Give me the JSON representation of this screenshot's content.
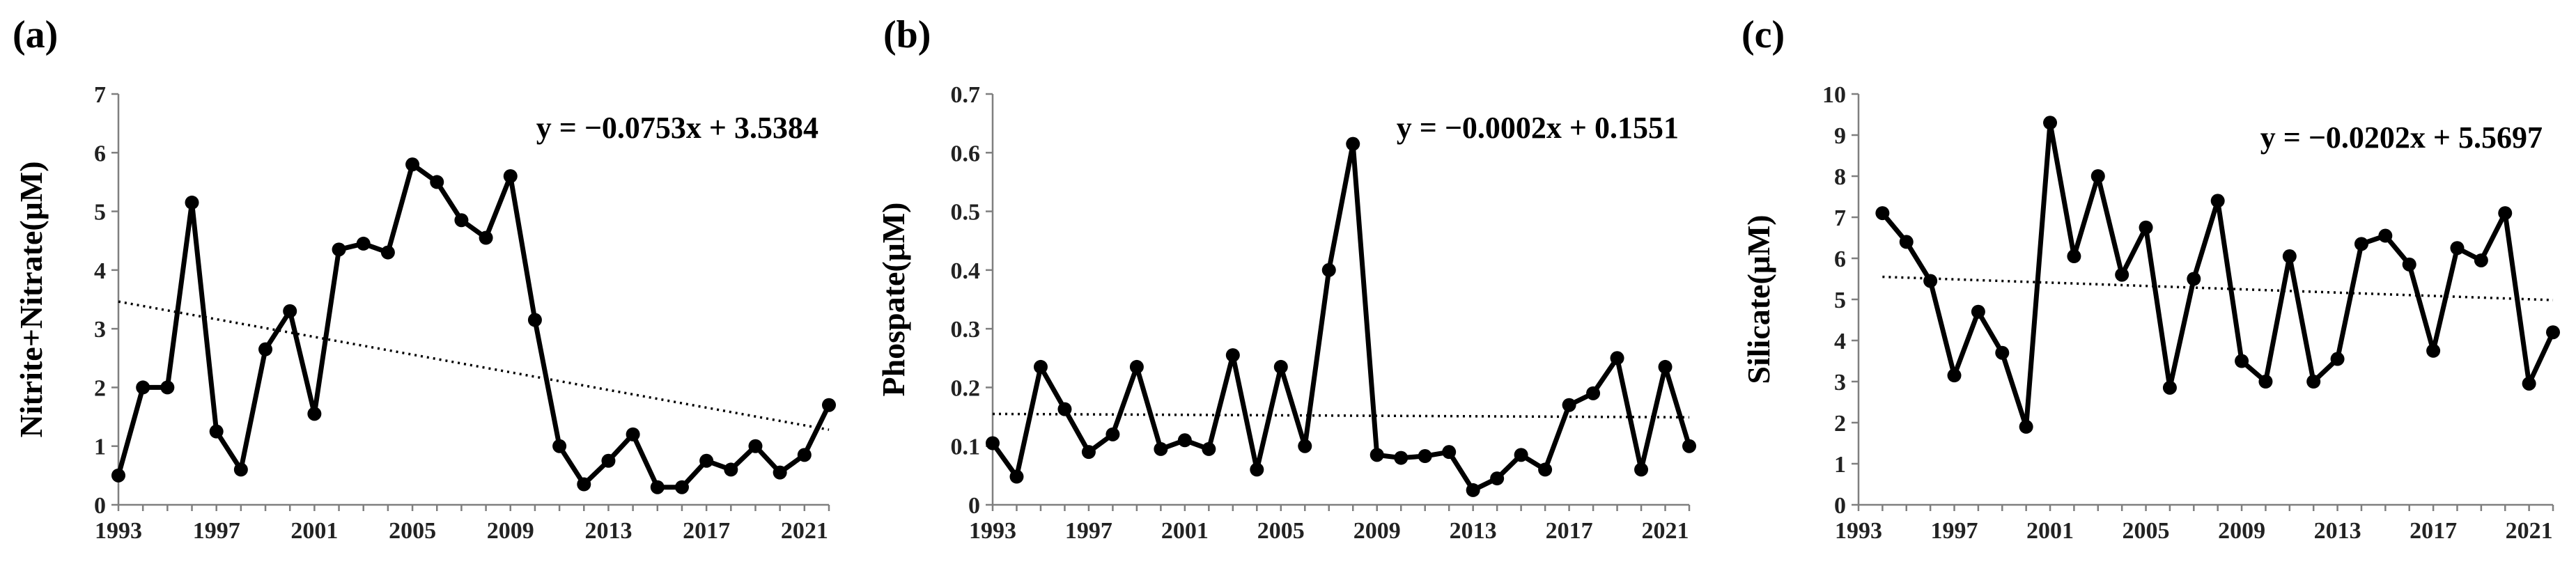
{
  "chart_data": [
    {
      "type": "line",
      "panel_label": "(a)",
      "title": "",
      "xlabel": "",
      "ylabel": "Nitrite+Nitrate(μM)",
      "xlim": [
        1993,
        2022
      ],
      "ylim": [
        0,
        7
      ],
      "yticks": [
        0,
        1,
        2,
        3,
        4,
        5,
        6,
        7
      ],
      "ytick_labels": [
        "0",
        "1",
        "2",
        "3",
        "4",
        "5",
        "6",
        "7"
      ],
      "xticks": [
        1993,
        1997,
        2001,
        2005,
        2009,
        2013,
        2017,
        2021
      ],
      "xtick_labels": [
        "1993",
        "1997",
        "2001",
        "2005",
        "2009",
        "2013",
        "2017",
        "2021"
      ],
      "grid": false,
      "equation": "y = −0.0753x + 3.5384",
      "trendline": {
        "slope": -0.0753,
        "intercept": 3.5384
      },
      "series": [
        {
          "x": [
            1993,
            1994,
            1995,
            1996,
            1997,
            1998,
            1999,
            2000,
            2001,
            2002,
            2003,
            2004,
            2005,
            2006,
            2007,
            2008,
            2009,
            2010,
            2011,
            2012,
            2013,
            2014,
            2015,
            2016,
            2017,
            2018,
            2019,
            2020,
            2021,
            2022
          ],
          "values": [
            0.5,
            2.0,
            2.0,
            5.15,
            1.25,
            0.6,
            2.65,
            3.3,
            1.55,
            4.35,
            4.45,
            4.3,
            5.8,
            5.5,
            4.85,
            4.55,
            5.6,
            3.15,
            1.0,
            0.35,
            0.75,
            1.2,
            0.3,
            0.3,
            0.75,
            0.6,
            1.0,
            0.55,
            0.85,
            1.7
          ]
        }
      ]
    },
    {
      "type": "line",
      "panel_label": "(b)",
      "title": "",
      "xlabel": "",
      "ylabel": "Phospate(μM)",
      "xlim": [
        1993,
        2022
      ],
      "ylim": [
        0,
        0.7
      ],
      "yticks": [
        0,
        0.1,
        0.2,
        0.3,
        0.4,
        0.5,
        0.6,
        0.7
      ],
      "ytick_labels": [
        "0",
        "0.1",
        "0.2",
        "0.3",
        "0.4",
        "0.5",
        "0.6",
        "0.7"
      ],
      "xticks": [
        1993,
        1997,
        2001,
        2005,
        2009,
        2013,
        2017,
        2021
      ],
      "xtick_labels": [
        "1993",
        "1997",
        "2001",
        "2005",
        "2009",
        "2013",
        "2017",
        "2021"
      ],
      "grid": false,
      "equation": "y = −0.0002x + 0.1551",
      "trendline": {
        "slope": -0.0002,
        "intercept": 0.1551
      },
      "series": [
        {
          "x": [
            1993,
            1994,
            1995,
            1996,
            1997,
            1998,
            1999,
            2000,
            2001,
            2002,
            2003,
            2004,
            2005,
            2006,
            2007,
            2008,
            2009,
            2010,
            2011,
            2012,
            2013,
            2014,
            2015,
            2016,
            2017,
            2018,
            2019,
            2020,
            2021,
            2022
          ],
          "values": [
            0.105,
            0.048,
            0.235,
            0.163,
            0.09,
            0.12,
            0.235,
            0.095,
            0.11,
            0.095,
            0.255,
            0.06,
            0.235,
            0.1,
            0.4,
            0.615,
            0.085,
            0.08,
            0.083,
            0.09,
            0.025,
            0.045,
            0.085,
            0.06,
            0.17,
            0.19,
            0.25,
            0.06,
            0.235,
            0.1
          ]
        }
      ]
    },
    {
      "type": "line",
      "panel_label": "(c)",
      "title": "",
      "xlabel": "",
      "ylabel": "Silicate(μM)",
      "xlim": [
        1993,
        2022
      ],
      "ylim": [
        0,
        10
      ],
      "yticks": [
        0,
        1,
        2,
        3,
        4,
        5,
        6,
        7,
        8,
        9,
        10
      ],
      "ytick_labels": [
        "0",
        "1",
        "2",
        "3",
        "4",
        "5",
        "6",
        "7",
        "8",
        "9",
        "10"
      ],
      "xticks": [
        1993,
        1997,
        2001,
        2005,
        2009,
        2013,
        2017,
        2021
      ],
      "xtick_labels": [
        "1993",
        "1997",
        "2001",
        "2005",
        "2009",
        "2013",
        "2017",
        "2021"
      ],
      "grid": false,
      "equation": "y = −0.0202x + 5.5697",
      "trendline": {
        "slope": -0.0202,
        "intercept": 5.5697
      },
      "series": [
        {
          "x": [
            1994,
            1995,
            1996,
            1997,
            1998,
            1999,
            2000,
            2001,
            2002,
            2003,
            2004,
            2005,
            2006,
            2007,
            2008,
            2009,
            2010,
            2011,
            2012,
            2013,
            2014,
            2015,
            2016,
            2017,
            2018,
            2019,
            2020,
            2021,
            2022
          ],
          "values": [
            7.1,
            6.4,
            5.45,
            3.15,
            4.7,
            3.7,
            1.9,
            9.3,
            6.05,
            8.0,
            5.6,
            6.75,
            2.85,
            5.5,
            7.4,
            3.5,
            3.0,
            6.05,
            3.0,
            3.55,
            6.35,
            6.55,
            5.85,
            3.75,
            6.25,
            5.95,
            7.1,
            2.95,
            4.2
          ]
        }
      ]
    }
  ]
}
